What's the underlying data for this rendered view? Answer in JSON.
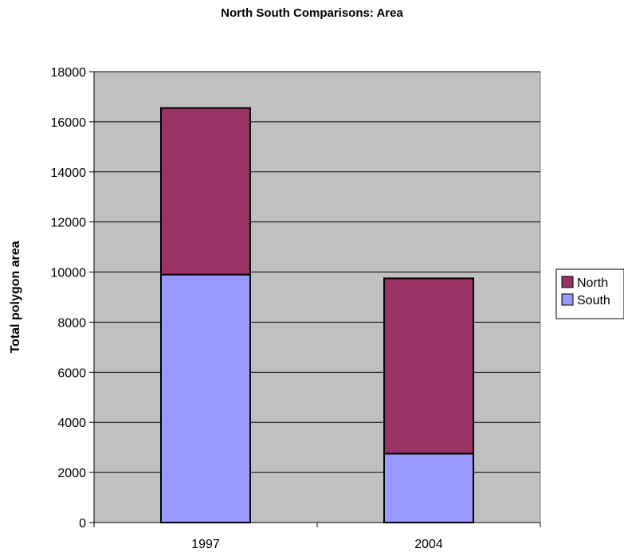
{
  "chart_data": {
    "type": "bar",
    "stacked": true,
    "title": "North South Comparisons: Area",
    "xlabel": "",
    "ylabel": "Total polygon area",
    "categories": [
      "1997",
      "2004"
    ],
    "series": [
      {
        "name": "South",
        "values": [
          9900,
          2750
        ],
        "color": "#9999ff"
      },
      {
        "name": "North",
        "values": [
          6650,
          7000
        ],
        "color": "#993366"
      }
    ],
    "ylim": [
      0,
      18000
    ],
    "yticks": [
      0,
      2000,
      4000,
      6000,
      8000,
      10000,
      12000,
      14000,
      16000,
      18000
    ],
    "grid": true,
    "legend_position": "right",
    "plot_background": "#c0c0c0"
  }
}
